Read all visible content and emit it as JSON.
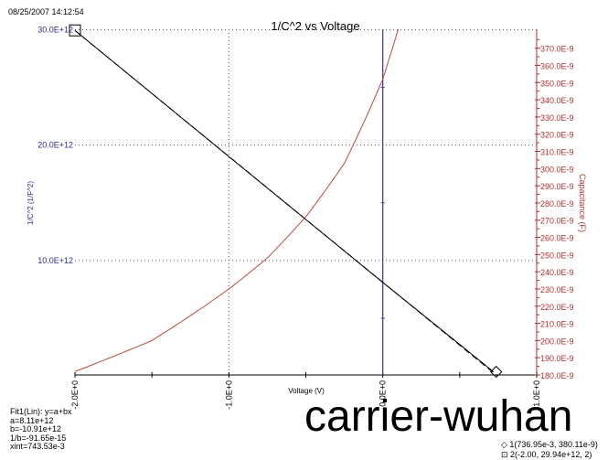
{
  "timestamp": "08/25/2007 14:12:54",
  "watermark": "carrier-wuhan",
  "colors": {
    "left_axis": "#2b2b8c",
    "right_axis": "#b03030",
    "capacitance_curve": "#b84a3a",
    "fit_line": "#000000",
    "vertical_line": "#3a3a9a"
  },
  "fit": {
    "title": "Fit1(Lin):  y=a+bx",
    "a": "a=8.11e+12",
    "b": "b=-10.91e+12",
    "inv_b": "1/b=-91.65e-15",
    "xint": "xint=743.53e-3"
  },
  "legend": {
    "item1": "1(736.95e-3, 380.11e-9)",
    "item2": "2(-2.00, 29.94e+12, 2)"
  },
  "chart_data": {
    "type": "line",
    "title": "1/C^2 vs Voltage",
    "xlabel": "Voltage (V)",
    "ylabel": "1/C^2 (1/F^2)",
    "y2label": "Capacitance (F)",
    "xlim": [
      -2,
      1
    ],
    "ylim": [
      0,
      30000000000000.0
    ],
    "y2lim": [
      1.8e-07,
      3.81e-07
    ],
    "grid": true,
    "x_ticks": [
      {
        "v": -2,
        "label": "-2.0E+0"
      },
      {
        "v": -1,
        "label": "-1.0E+0"
      },
      {
        "v": 0,
        "label": "0.0E+0"
      },
      {
        "v": 1,
        "label": "1.0E+0"
      }
    ],
    "y_ticks": [
      {
        "v": 10000000000000.0,
        "label": "10.0E+12"
      },
      {
        "v": 20000000000000.0,
        "label": "20.0E+12"
      },
      {
        "v": 30000000000000.0,
        "label": "30.0E+12"
      }
    ],
    "y2_ticks": [
      "180.0E-9",
      "190.0E-9",
      "200.0E-9",
      "210.0E-9",
      "220.0E-9",
      "230.0E-9",
      "240.0E-9",
      "250.0E-9",
      "260.0E-9",
      "270.0E-9",
      "280.0E-9",
      "290.0E-9",
      "300.0E-9",
      "310.0E-9",
      "320.0E-9",
      "330.0E-9",
      "340.0E-9",
      "350.0E-9",
      "360.0E-9",
      "370.0E-9"
    ],
    "series": [
      {
        "axis": "left",
        "style": "solid",
        "x": [
          -2,
          -1,
          0,
          0.72
        ],
        "y": [
          29940000000000.0,
          19000000000000.0,
          8100000000000.0,
          350000000000.0
        ]
      },
      {
        "axis": "left",
        "style": "dashed",
        "x": [
          -2,
          0.7435
        ],
        "y": [
          29930000000000.0,
          0
        ]
      },
      {
        "axis": "right",
        "style": "solid",
        "x": [
          -2,
          -1.5,
          -1,
          -0.75,
          -0.5,
          -0.25,
          0,
          0.1
        ],
        "y": [
          1.82e-07,
          2e-07,
          2.3e-07,
          2.48e-07,
          2.72e-07,
          3.03e-07,
          3.52e-07,
          3.81e-07
        ]
      }
    ],
    "markers": [
      {
        "shape": "square",
        "x": -2,
        "y": 29940000000000.0
      },
      {
        "shape": "diamond",
        "x": 0.737,
        "y": 350000000000.0
      }
    ],
    "vertical_line_x": 0
  }
}
